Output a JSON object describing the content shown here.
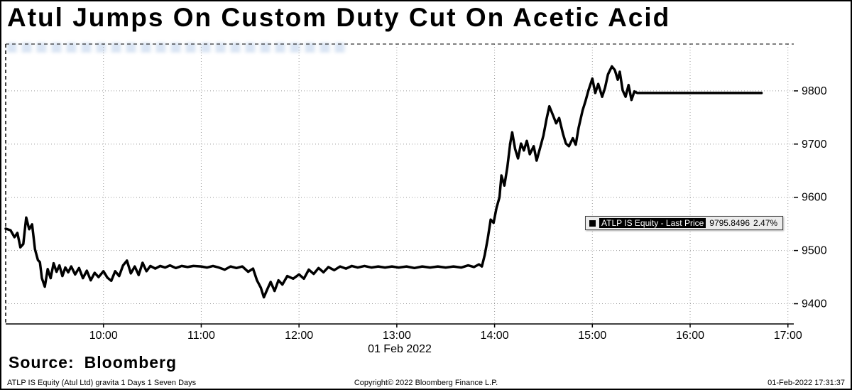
{
  "header": {
    "title": "Atul Jumps On Custom Duty Cut On Acetic Acid"
  },
  "legend": {
    "label": "ATLP IS Equity - Last Price",
    "value": "9795.8496",
    "change": "2.47%"
  },
  "source": {
    "label": "Source:",
    "value": "Bloomberg"
  },
  "footer": {
    "left": "ATLP IS Equity (Atul Ltd) gravita 1 Days 1 Seven Days",
    "center": "Copyright© 2022 Bloomberg Finance L.P.",
    "right": "01-Feb-2022 17:31:37"
  },
  "chart_data": {
    "type": "line",
    "title": "Atul Jumps On Custom Duty Cut On Acetic Acid",
    "xlabel": "01 Feb 2022",
    "ylabel": "",
    "x_range": [
      9.0,
      17.06
    ],
    "y_range": [
      9362,
      9888
    ],
    "grid": "dotted",
    "legend_position": "inside-right",
    "y_ticks": [
      9400,
      9500,
      9600,
      9700,
      9800
    ],
    "x_ticks": [
      {
        "v": 10,
        "label": "10:00"
      },
      {
        "v": 11,
        "label": "11:00"
      },
      {
        "v": 12,
        "label": "12:00"
      },
      {
        "v": 13,
        "label": "13:00"
      },
      {
        "v": 14,
        "label": "14:00"
      },
      {
        "v": 15,
        "label": "15:00"
      },
      {
        "v": 16,
        "label": "16:00"
      },
      {
        "v": 17,
        "label": "17:00"
      }
    ],
    "series": [
      {
        "name": "ATLP IS Equity - Last Price",
        "color": "#000000",
        "last_value": 9795.8496,
        "change_pct": 2.47,
        "points": [
          [
            9.0,
            9541
          ],
          [
            9.05,
            9538
          ],
          [
            9.09,
            9525
          ],
          [
            9.12,
            9533
          ],
          [
            9.15,
            9506
          ],
          [
            9.18,
            9512
          ],
          [
            9.21,
            9562
          ],
          [
            9.24,
            9540
          ],
          [
            9.27,
            9549
          ],
          [
            9.3,
            9502
          ],
          [
            9.33,
            9482
          ],
          [
            9.35,
            9478
          ],
          [
            9.37,
            9448
          ],
          [
            9.4,
            9432
          ],
          [
            9.43,
            9465
          ],
          [
            9.46,
            9448
          ],
          [
            9.49,
            9476
          ],
          [
            9.52,
            9460
          ],
          [
            9.55,
            9472
          ],
          [
            9.58,
            9452
          ],
          [
            9.61,
            9468
          ],
          [
            9.64,
            9459
          ],
          [
            9.67,
            9470
          ],
          [
            9.71,
            9455
          ],
          [
            9.75,
            9467
          ],
          [
            9.79,
            9448
          ],
          [
            9.83,
            9462
          ],
          [
            9.87,
            9444
          ],
          [
            9.91,
            9458
          ],
          [
            9.95,
            9450
          ],
          [
            10.0,
            9461
          ],
          [
            10.04,
            9449
          ],
          [
            10.08,
            9443
          ],
          [
            10.12,
            9461
          ],
          [
            10.16,
            9452
          ],
          [
            10.2,
            9472
          ],
          [
            10.24,
            9481
          ],
          [
            10.28,
            9457
          ],
          [
            10.32,
            9470
          ],
          [
            10.36,
            9454
          ],
          [
            10.4,
            9477
          ],
          [
            10.44,
            9461
          ],
          [
            10.48,
            9471
          ],
          [
            10.53,
            9466
          ],
          [
            10.58,
            9471
          ],
          [
            10.63,
            9468
          ],
          [
            10.68,
            9472
          ],
          [
            10.74,
            9467
          ],
          [
            10.8,
            9471
          ],
          [
            10.86,
            9469
          ],
          [
            10.92,
            9471
          ],
          [
            11.0,
            9470
          ],
          [
            11.06,
            9468
          ],
          [
            11.12,
            9471
          ],
          [
            11.18,
            9468
          ],
          [
            11.24,
            9464
          ],
          [
            11.3,
            9470
          ],
          [
            11.36,
            9467
          ],
          [
            11.42,
            9470
          ],
          [
            11.48,
            9460
          ],
          [
            11.53,
            9466
          ],
          [
            11.57,
            9444
          ],
          [
            11.61,
            9430
          ],
          [
            11.64,
            9412
          ],
          [
            11.68,
            9429
          ],
          [
            11.71,
            9441
          ],
          [
            11.75,
            9424
          ],
          [
            11.79,
            9444
          ],
          [
            11.83,
            9436
          ],
          [
            11.88,
            9452
          ],
          [
            11.94,
            9447
          ],
          [
            12.0,
            9455
          ],
          [
            12.05,
            9447
          ],
          [
            12.1,
            9464
          ],
          [
            12.15,
            9456
          ],
          [
            12.2,
            9467
          ],
          [
            12.25,
            9459
          ],
          [
            12.3,
            9469
          ],
          [
            12.36,
            9463
          ],
          [
            12.42,
            9470
          ],
          [
            12.48,
            9466
          ],
          [
            12.54,
            9471
          ],
          [
            12.6,
            9468
          ],
          [
            12.67,
            9471
          ],
          [
            12.74,
            9468
          ],
          [
            12.81,
            9470
          ],
          [
            12.88,
            9468
          ],
          [
            12.95,
            9470
          ],
          [
            13.02,
            9468
          ],
          [
            13.1,
            9470
          ],
          [
            13.18,
            9467
          ],
          [
            13.26,
            9470
          ],
          [
            13.34,
            9468
          ],
          [
            13.42,
            9470
          ],
          [
            13.5,
            9468
          ],
          [
            13.58,
            9470
          ],
          [
            13.66,
            9468
          ],
          [
            13.73,
            9472
          ],
          [
            13.79,
            9469
          ],
          [
            13.84,
            9474
          ],
          [
            13.87,
            9470
          ],
          [
            13.9,
            9492
          ],
          [
            13.93,
            9522
          ],
          [
            13.96,
            9558
          ],
          [
            13.99,
            9552
          ],
          [
            14.02,
            9580
          ],
          [
            14.05,
            9600
          ],
          [
            14.07,
            9641
          ],
          [
            14.1,
            9622
          ],
          [
            14.13,
            9656
          ],
          [
            14.16,
            9701
          ],
          [
            14.18,
            9722
          ],
          [
            14.21,
            9691
          ],
          [
            14.24,
            9673
          ],
          [
            14.27,
            9701
          ],
          [
            14.3,
            9688
          ],
          [
            14.33,
            9706
          ],
          [
            14.36,
            9681
          ],
          [
            14.4,
            9696
          ],
          [
            14.43,
            9669
          ],
          [
            14.46,
            9689
          ],
          [
            14.5,
            9716
          ],
          [
            14.53,
            9746
          ],
          [
            14.56,
            9771
          ],
          [
            14.6,
            9753
          ],
          [
            14.63,
            9739
          ],
          [
            14.66,
            9749
          ],
          [
            14.7,
            9719
          ],
          [
            14.73,
            9701
          ],
          [
            14.76,
            9696
          ],
          [
            14.8,
            9711
          ],
          [
            14.83,
            9699
          ],
          [
            14.86,
            9731
          ],
          [
            14.9,
            9763
          ],
          [
            14.93,
            9781
          ],
          [
            14.96,
            9801
          ],
          [
            15.0,
            9823
          ],
          [
            15.03,
            9796
          ],
          [
            15.06,
            9813
          ],
          [
            15.1,
            9789
          ],
          [
            15.13,
            9806
          ],
          [
            15.16,
            9831
          ],
          [
            15.2,
            9846
          ],
          [
            15.23,
            9839
          ],
          [
            15.26,
            9821
          ],
          [
            15.28,
            9836
          ],
          [
            15.31,
            9801
          ],
          [
            15.34,
            9789
          ],
          [
            15.37,
            9811
          ],
          [
            15.4,
            9783
          ],
          [
            15.43,
            9799
          ],
          [
            15.46,
            9796
          ],
          [
            15.5,
            9796
          ],
          [
            15.7,
            9796
          ],
          [
            16.0,
            9796
          ],
          [
            16.3,
            9796
          ],
          [
            16.6,
            9796
          ],
          [
            16.73,
            9796
          ]
        ]
      }
    ]
  }
}
